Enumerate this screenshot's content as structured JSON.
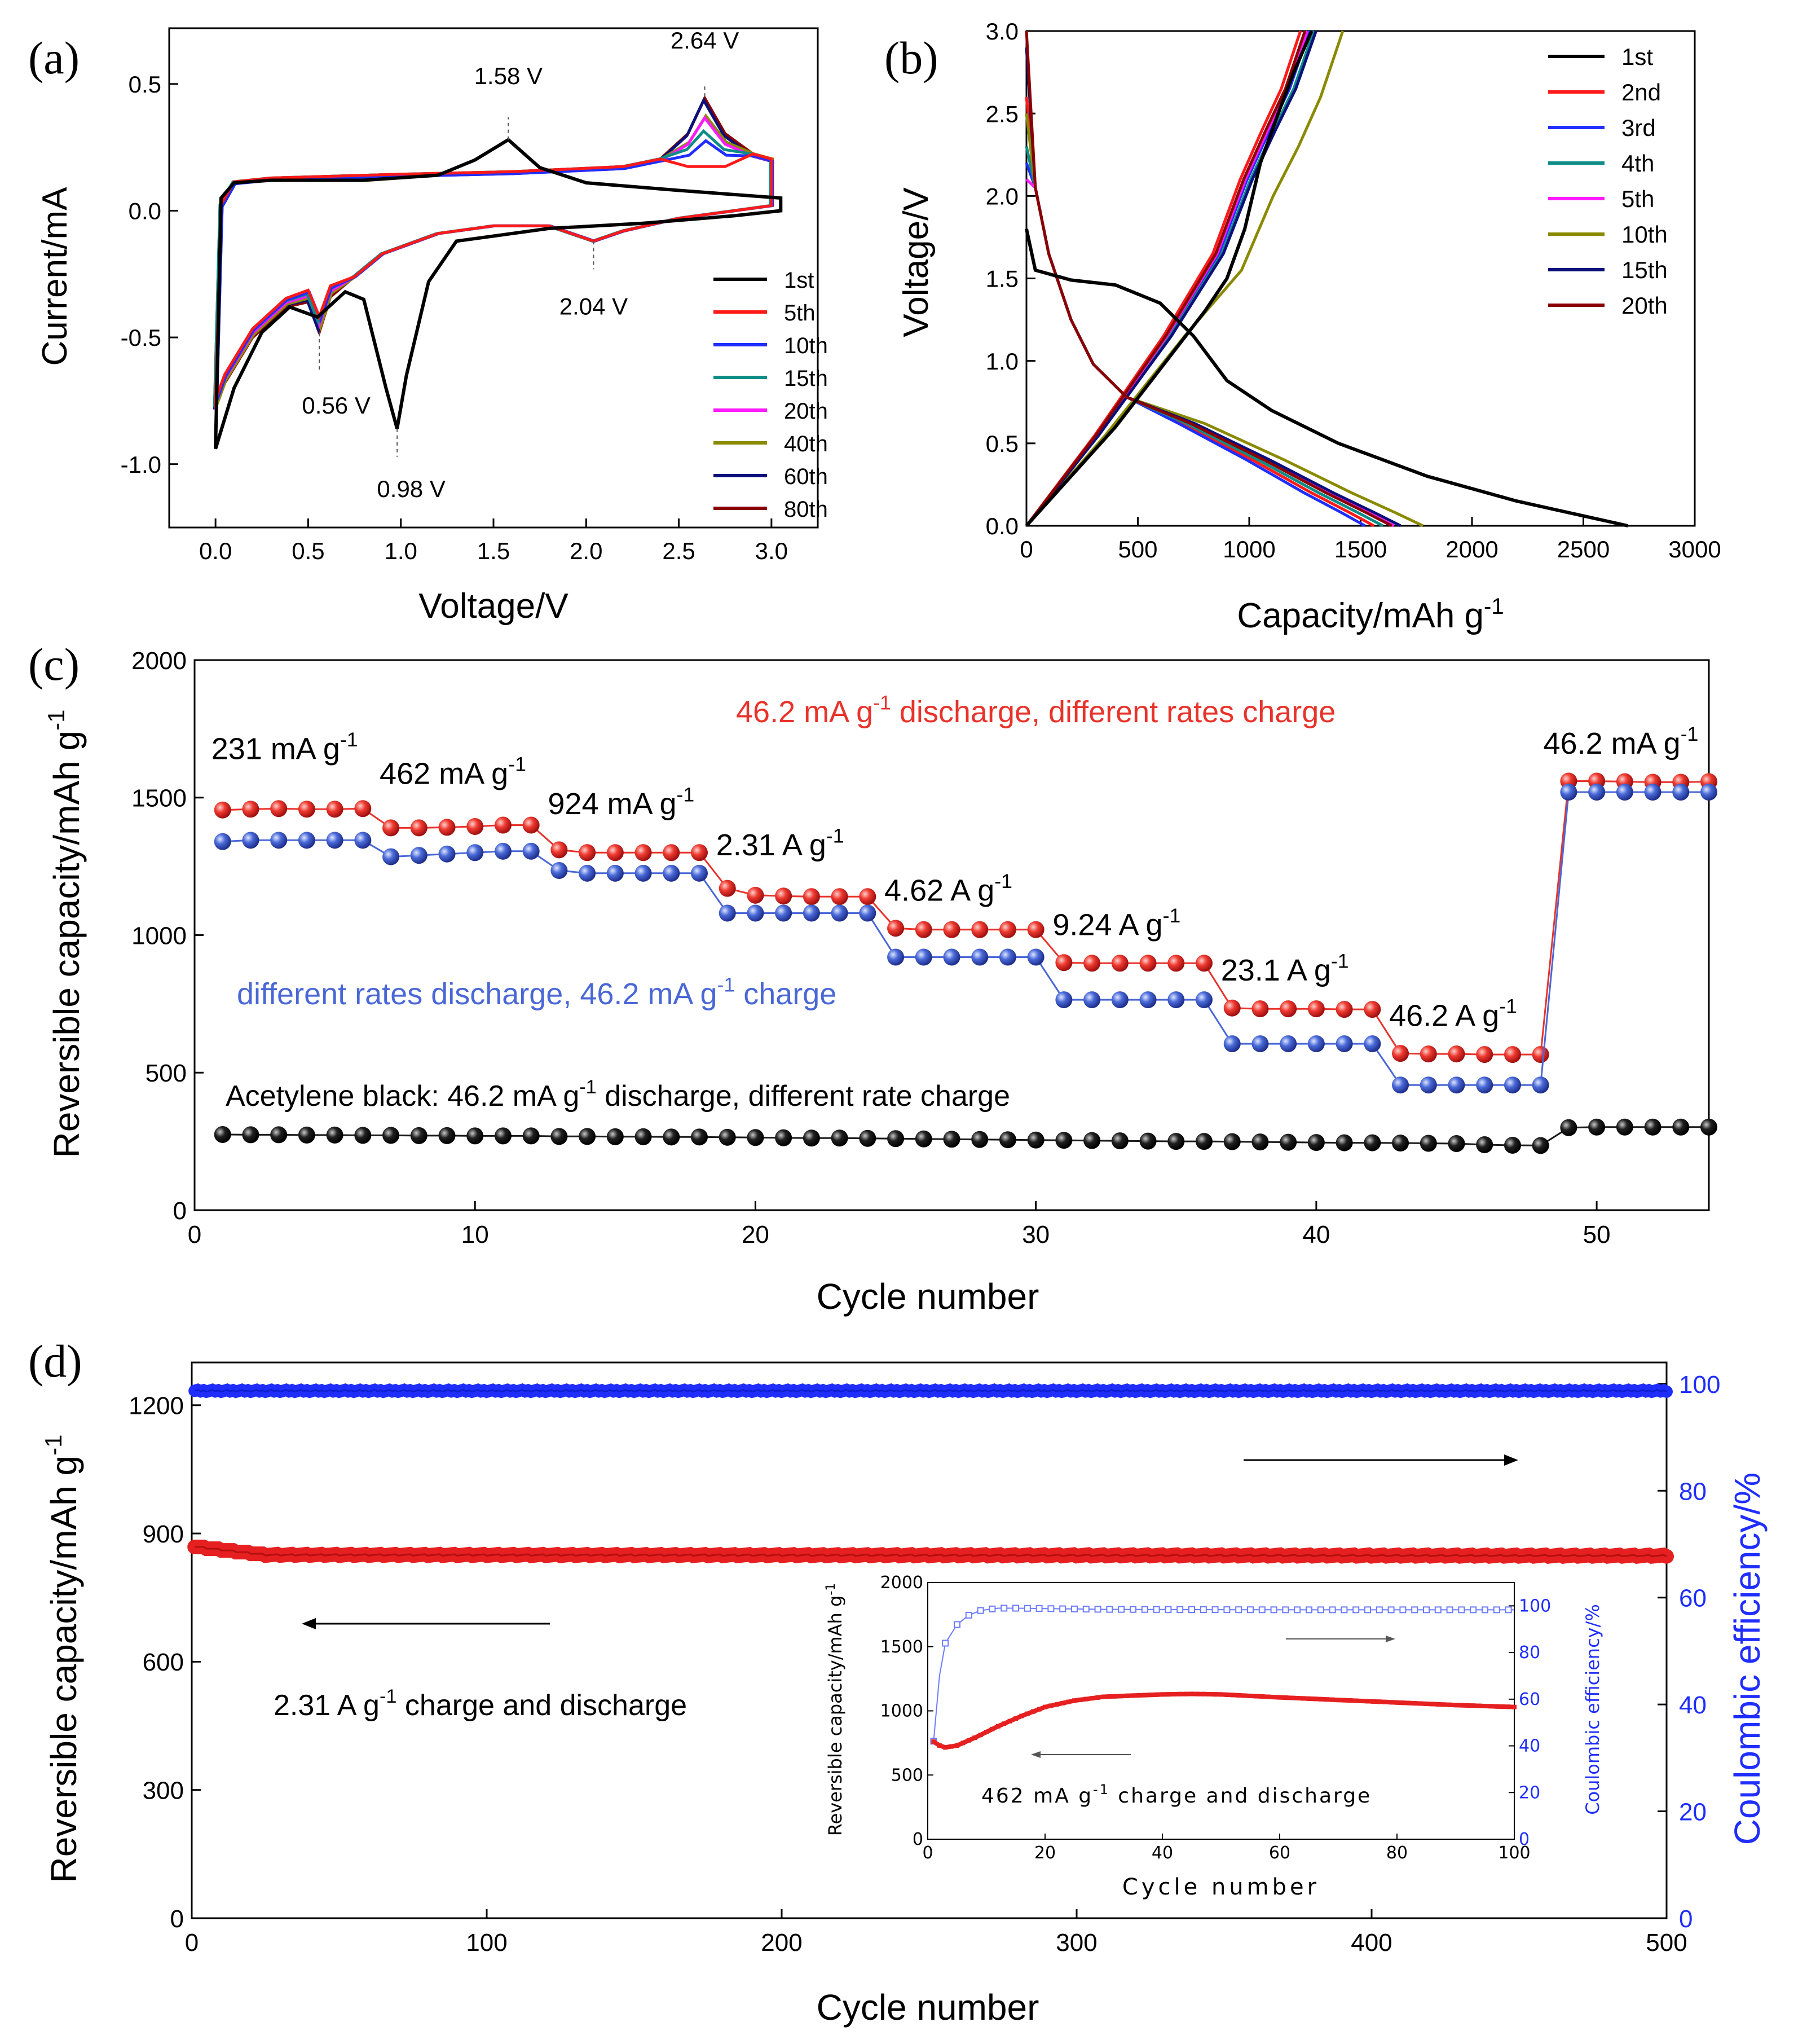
{
  "chart_data": [
    {
      "id": "a",
      "type": "line",
      "panel_label": "(a)",
      "xlabel": "Voltage/V",
      "ylabel": "Current/mA",
      "xlim": [
        -0.25,
        3.25
      ],
      "ylim": [
        -1.25,
        0.72
      ],
      "xticks": [
        "0.0",
        "0.5",
        "1.0",
        "1.5",
        "2.0",
        "2.5",
        "3.0"
      ],
      "yticks": [
        "-1.0",
        "-0.5",
        "0.0",
        "0.5"
      ],
      "legend": [
        "1st",
        "5th",
        "10th",
        "15th",
        "20th",
        "40th",
        "60th",
        "80th"
      ],
      "colors": [
        "#000000",
        "#ff1a1a",
        "#1f2eff",
        "#0e8c86",
        "#ff19ff",
        "#8a8a00",
        "#0a0f7a",
        "#8a0000"
      ],
      "annotations": [
        {
          "text": "1.58 V",
          "x": 1.58,
          "y": 0.28
        },
        {
          "text": "2.64 V",
          "x": 2.64,
          "y": 0.45
        },
        {
          "text": "0.56 V",
          "x": 0.56,
          "y": -0.48
        },
        {
          "text": "0.98 V",
          "x": 0.98,
          "y": -0.86
        },
        {
          "text": "2.04 V",
          "x": 2.04,
          "y": -0.12
        }
      ],
      "first_cycle": {
        "anodic": [
          [
            0.0,
            -0.94
          ],
          [
            0.03,
            0.05
          ],
          [
            0.1,
            0.11
          ],
          [
            0.3,
            0.12
          ],
          [
            0.8,
            0.12
          ],
          [
            1.2,
            0.14
          ],
          [
            1.4,
            0.2
          ],
          [
            1.58,
            0.28
          ],
          [
            1.75,
            0.17
          ],
          [
            2.0,
            0.11
          ],
          [
            2.5,
            0.08
          ],
          [
            3.05,
            0.05
          ]
        ],
        "cathodic": [
          [
            3.05,
            0.0
          ],
          [
            2.8,
            -0.02
          ],
          [
            2.3,
            -0.05
          ],
          [
            1.8,
            -0.07
          ],
          [
            1.3,
            -0.12
          ],
          [
            1.15,
            -0.28
          ],
          [
            1.03,
            -0.65
          ],
          [
            0.98,
            -0.86
          ],
          [
            0.92,
            -0.7
          ],
          [
            0.8,
            -0.35
          ],
          [
            0.7,
            -0.32
          ],
          [
            0.55,
            -0.42
          ],
          [
            0.4,
            -0.38
          ],
          [
            0.25,
            -0.48
          ],
          [
            0.1,
            -0.7
          ],
          [
            0.0,
            -0.94
          ]
        ]
      },
      "later_cycles": {
        "anodic_base": [
          [
            0.0,
            -0.78
          ],
          [
            0.03,
            0.02
          ],
          [
            0.1,
            0.11
          ],
          [
            0.3,
            0.125
          ],
          [
            1.0,
            0.14
          ],
          [
            1.6,
            0.15
          ],
          [
            2.2,
            0.17
          ],
          [
            2.4,
            0.2
          ],
          [
            2.55,
            0.3
          ],
          [
            2.64,
            0.44
          ],
          [
            2.75,
            0.3
          ],
          [
            2.9,
            0.22
          ],
          [
            3.0,
            0.2
          ],
          [
            3.0,
            0.02
          ]
        ],
        "cathodic_base": [
          [
            3.0,
            0.02
          ],
          [
            2.5,
            -0.03
          ],
          [
            2.2,
            -0.08
          ],
          [
            2.04,
            -0.12
          ],
          [
            1.8,
            -0.06
          ],
          [
            1.5,
            -0.06
          ],
          [
            1.2,
            -0.09
          ],
          [
            1.05,
            -0.13
          ],
          [
            0.9,
            -0.17
          ],
          [
            0.75,
            -0.26
          ],
          [
            0.62,
            -0.34
          ],
          [
            0.56,
            -0.48
          ],
          [
            0.5,
            -0.36
          ],
          [
            0.38,
            -0.38
          ],
          [
            0.2,
            -0.5
          ],
          [
            0.05,
            -0.68
          ],
          [
            0.0,
            -0.78
          ]
        ],
        "peak_heights": [
          0.17,
          0.28,
          0.31,
          0.37,
          0.37,
          0.44,
          0.44
        ]
      }
    },
    {
      "id": "b",
      "type": "line",
      "panel_label": "(b)",
      "xlabel": "Capacity/mAh g",
      "xlabel_sup": "-1",
      "ylabel": "Voltage/V",
      "xlim": [
        0,
        3000
      ],
      "ylim": [
        0,
        3.0
      ],
      "xticks": [
        "0",
        "500",
        "1000",
        "1500",
        "2000",
        "2500",
        "3000"
      ],
      "yticks": [
        "0.0",
        "0.5",
        "1.0",
        "1.5",
        "2.0",
        "2.5",
        "3.0"
      ],
      "legend": [
        "1st",
        "2nd",
        "3rd",
        "4th",
        "5th",
        "10th",
        "15th",
        "20th"
      ],
      "colors": [
        "#000000",
        "#ff1a1a",
        "#1f2eff",
        "#0e8c86",
        "#ff19ff",
        "#8a8a00",
        "#0a0f7a",
        "#8a0000"
      ],
      "discharge_end_capacity": [
        2700,
        1560,
        1520,
        1600,
        1650,
        1780,
        1680,
        1640
      ],
      "charge_end_capacity": [
        1280,
        1230,
        1270,
        1290,
        1260,
        1420,
        1300,
        1250
      ],
      "first_cycle": {
        "discharge": [
          [
            0,
            1.8
          ],
          [
            40,
            1.55
          ],
          [
            200,
            1.49
          ],
          [
            400,
            1.46
          ],
          [
            600,
            1.35
          ],
          [
            750,
            1.15
          ],
          [
            900,
            0.88
          ],
          [
            1100,
            0.7
          ],
          [
            1400,
            0.5
          ],
          [
            1800,
            0.3
          ],
          [
            2200,
            0.15
          ],
          [
            2700,
            0.0
          ]
        ],
        "charge": [
          [
            0,
            0.0
          ],
          [
            200,
            0.3
          ],
          [
            400,
            0.6
          ],
          [
            600,
            0.95
          ],
          [
            800,
            1.3
          ],
          [
            900,
            1.5
          ],
          [
            980,
            1.8
          ],
          [
            1050,
            2.2
          ],
          [
            1130,
            2.5
          ],
          [
            1200,
            2.75
          ],
          [
            1280,
            3.0
          ]
        ]
      }
    },
    {
      "id": "c",
      "type": "scatter",
      "panel_label": "(c)",
      "xlabel": "Cycle number",
      "ylabel": "Reversible capacity/mAh g",
      "ylabel_sup": "-1",
      "xlim": [
        0,
        54
      ],
      "ylim": [
        0,
        2000
      ],
      "xticks": [
        "0",
        "10",
        "20",
        "30",
        "40",
        "50"
      ],
      "yticks": [
        "0",
        "500",
        "1000",
        "1500",
        "2000"
      ],
      "series": [
        {
          "name": "46.2 mA g-1 discharge, different rates charge",
          "color": "#e8322a",
          "values": [
            1455,
            1458,
            1460,
            1458,
            1458,
            1460,
            1390,
            1390,
            1392,
            1395,
            1400,
            1400,
            1310,
            1300,
            1300,
            1300,
            1300,
            1300,
            1170,
            1145,
            1142,
            1140,
            1140,
            1140,
            1025,
            1020,
            1020,
            1020,
            1020,
            1020,
            900,
            898,
            898,
            898,
            898,
            898,
            735,
            732,
            732,
            732,
            730,
            730,
            570,
            568,
            568,
            566,
            566,
            566,
            1560,
            1560,
            1558,
            1556,
            1556,
            1558
          ]
        },
        {
          "name": "different rates discharge, 46.2 mA g-1 charge",
          "color": "#4a67d6",
          "values": [
            1340,
            1345,
            1345,
            1345,
            1345,
            1345,
            1285,
            1290,
            1295,
            1300,
            1305,
            1305,
            1235,
            1225,
            1225,
            1225,
            1225,
            1225,
            1080,
            1080,
            1080,
            1080,
            1080,
            1080,
            920,
            920,
            920,
            920,
            920,
            920,
            765,
            765,
            765,
            765,
            765,
            765,
            605,
            605,
            605,
            605,
            605,
            605,
            455,
            455,
            455,
            455,
            455,
            455,
            1520,
            1520,
            1520,
            1520,
            1520,
            1520
          ]
        },
        {
          "name": "Acetylene black",
          "color": "#1a1a1a",
          "values": [
            275,
            274,
            274,
            273,
            273,
            272,
            272,
            271,
            271,
            270,
            270,
            270,
            268,
            268,
            267,
            267,
            266,
            266,
            265,
            264,
            263,
            262,
            262,
            261,
            260,
            259,
            258,
            257,
            256,
            255,
            254,
            253,
            252,
            251,
            250,
            250,
            249,
            248,
            247,
            246,
            245,
            245,
            244,
            243,
            242,
            238,
            236,
            235,
            300,
            302,
            302,
            302,
            302,
            302
          ]
        }
      ],
      "texts": {
        "red_label": "46.2 mA g",
        "red_label_sup": "-1",
        "red_label_rest": " discharge, different rates charge",
        "blue_label": "different rates discharge, 46.2 mA g",
        "blue_label_sup": "-1",
        "blue_label_rest": " charge",
        "black_label": "Acetylene black: 46.2 mA g",
        "black_label_sup": "-1",
        "black_label_rest": " discharge, different rate charge"
      },
      "rate_labels": [
        {
          "text": "231 mA g",
          "cycle": 1,
          "value": 1640
        },
        {
          "text": "462 mA g",
          "cycle": 7,
          "value": 1550
        },
        {
          "text": "924 mA g",
          "cycle": 13,
          "value": 1440
        },
        {
          "text": "2.31 A g",
          "cycle": 19,
          "value": 1290
        },
        {
          "text": "4.62 A g",
          "cycle": 25,
          "value": 1125
        },
        {
          "text": "9.24 A g",
          "cycle": 31,
          "value": 1000
        },
        {
          "text": "23.1 A g",
          "cycle": 37,
          "value": 835
        },
        {
          "text": "46.2 A g",
          "cycle": 43,
          "value": 670
        },
        {
          "text": "46.2 mA g",
          "cycle": 48.5,
          "value": 1660
        }
      ],
      "rate_label_sup": "-1"
    },
    {
      "id": "d",
      "type": "scatter",
      "panel_label": "(d)",
      "xlabel": "Cycle number",
      "ylabel": "Reversible capacity/mAh g",
      "ylabel_sup": "-1",
      "y2label": "Coulombic efficiency/%",
      "xlim": [
        0,
        500
      ],
      "ylim": [
        0,
        1300
      ],
      "y2lim": [
        0,
        104
      ],
      "xticks": [
        "0",
        "100",
        "200",
        "300",
        "400",
        "500"
      ],
      "yticks": [
        "0",
        "300",
        "600",
        "900",
        "1200"
      ],
      "y2ticks": [
        "0",
        "20",
        "40",
        "60",
        "80",
        "100"
      ],
      "capacity_series": {
        "color": "#e62020",
        "start": 870,
        "after_25": 850,
        "end": 848
      },
      "efficiency_series": {
        "color": "#1f2eff",
        "value": 98.7
      },
      "annotation": "2.31 A g",
      "annotation_sup": "-1",
      "annotation_rest": " charge and discharge",
      "inset": {
        "xlabel": "Cycle number",
        "ylabel": "Reversible capacity/mAh g",
        "ylabel_sup": "-1",
        "y2label": "Coulombic efficiency/%",
        "xlim": [
          0,
          100
        ],
        "ylim": [
          0,
          2000
        ],
        "y2lim": [
          0,
          110
        ],
        "xticks": [
          "0",
          "20",
          "40",
          "60",
          "80",
          "100"
        ],
        "yticks": [
          "0",
          "500",
          "1000",
          "1500",
          "2000"
        ],
        "y2ticks": [
          "0",
          "20",
          "40",
          "60",
          "80",
          "100"
        ],
        "annotation": "462 mA g",
        "annotation_sup": "-1",
        "annotation_rest": " charge and discharge",
        "capacity": [
          [
            1,
            760
          ],
          [
            2,
            730
          ],
          [
            3,
            715
          ],
          [
            5,
            730
          ],
          [
            8,
            790
          ],
          [
            12,
            880
          ],
          [
            16,
            960
          ],
          [
            20,
            1030
          ],
          [
            25,
            1080
          ],
          [
            30,
            1110
          ],
          [
            40,
            1128
          ],
          [
            45,
            1132
          ],
          [
            50,
            1128
          ],
          [
            60,
            1105
          ],
          [
            70,
            1085
          ],
          [
            80,
            1065
          ],
          [
            90,
            1045
          ],
          [
            100,
            1030
          ]
        ],
        "efficiency": [
          [
            1,
            42
          ],
          [
            2,
            70
          ],
          [
            3,
            84
          ],
          [
            5,
            92
          ],
          [
            7,
            96
          ],
          [
            9,
            98
          ],
          [
            12,
            99
          ],
          [
            15,
            99
          ],
          [
            30,
            98.5
          ],
          [
            60,
            98.3
          ],
          [
            100,
            98.3
          ]
        ]
      }
    }
  ]
}
